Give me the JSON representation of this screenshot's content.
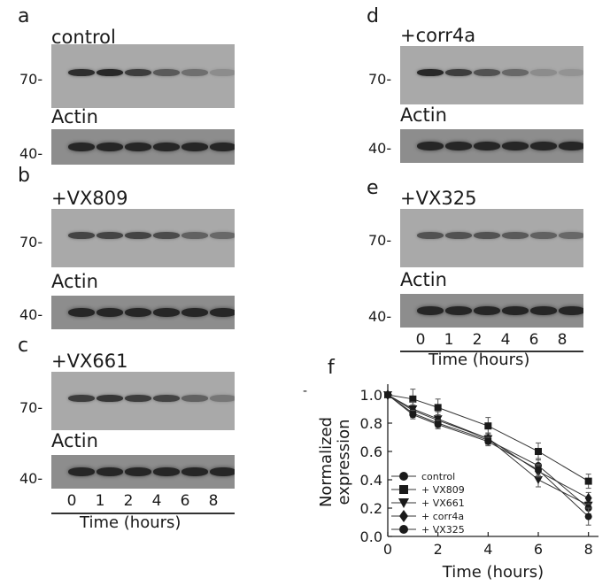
{
  "panels": [
    {
      "letter": "a",
      "condition": "control",
      "mw_top": "70-",
      "actin": "Actin",
      "mw_bottom": "40-",
      "band_levels": [
        0.85,
        0.9,
        0.75,
        0.55,
        0.4,
        0.2
      ]
    },
    {
      "letter": "b",
      "condition": "+VX809",
      "mw_top": "70-",
      "actin": "Actin",
      "mw_bottom": "40-",
      "band_levels": [
        0.7,
        0.7,
        0.7,
        0.65,
        0.5,
        0.45
      ]
    },
    {
      "letter": "c",
      "condition": "+VX661",
      "mw_top": "70-",
      "actin": "Actin",
      "mw_bottom": "40-",
      "band_levels": [
        0.75,
        0.8,
        0.75,
        0.7,
        0.5,
        0.35
      ]
    },
    {
      "letter": "d",
      "condition": "+corr4a",
      "mw_top": "70-",
      "actin": "Actin",
      "mw_bottom": "40-",
      "band_levels": [
        0.9,
        0.75,
        0.6,
        0.45,
        0.2,
        0.15
      ]
    },
    {
      "letter": "e",
      "condition": "+VX325",
      "mw_top": "70-",
      "actin": "Actin",
      "mw_bottom": "40-",
      "band_levels": [
        0.6,
        0.6,
        0.6,
        0.55,
        0.5,
        0.45
      ]
    }
  ],
  "time_axis": {
    "ticks": [
      "0",
      "1",
      "2",
      "4",
      "6",
      "8"
    ],
    "label": "Time (hours)"
  },
  "chart_data": {
    "type": "line",
    "panel_letter": "f",
    "stray_mark": "-",
    "xlabel": "Time (hours)",
    "ylabel_lines": [
      "Normalized",
      "expression"
    ],
    "xlim": [
      0,
      8.4
    ],
    "ylim": [
      0,
      1.05
    ],
    "xticks": [
      "0",
      "2",
      "4",
      "6",
      "8"
    ],
    "yticks": [
      "0.0",
      "0.2",
      "0.4",
      "0.6",
      "0.8",
      "1.0"
    ],
    "x": [
      0,
      1,
      2,
      4,
      6,
      8
    ],
    "legend_position": "bottom-left",
    "series": [
      {
        "name": "control",
        "marker": "circle",
        "values": [
          1.0,
          0.87,
          0.8,
          0.68,
          0.5,
          0.2
        ],
        "errors": [
          0.02,
          0.03,
          0.03,
          0.03,
          0.05,
          0.05
        ]
      },
      {
        "name": "+ VX809",
        "marker": "square",
        "values": [
          1.0,
          0.97,
          0.91,
          0.78,
          0.6,
          0.39
        ],
        "errors": [
          0.02,
          0.07,
          0.06,
          0.06,
          0.06,
          0.05
        ]
      },
      {
        "name": "+ VX661",
        "marker": "triangle-down",
        "values": [
          1.0,
          0.9,
          0.83,
          0.69,
          0.4,
          0.22
        ],
        "errors": [
          0.02,
          0.05,
          0.05,
          0.04,
          0.05,
          0.06
        ]
      },
      {
        "name": "+ corr4a",
        "marker": "diamond",
        "values": [
          1.0,
          0.89,
          0.82,
          0.69,
          0.46,
          0.27
        ],
        "errors": [
          0.02,
          0.04,
          0.04,
          0.04,
          0.04,
          0.04
        ]
      },
      {
        "name": "+ VX325",
        "marker": "circle",
        "values": [
          1.0,
          0.86,
          0.79,
          0.67,
          0.47,
          0.14
        ],
        "errors": [
          0.02,
          0.03,
          0.03,
          0.03,
          0.04,
          0.06
        ]
      }
    ]
  }
}
